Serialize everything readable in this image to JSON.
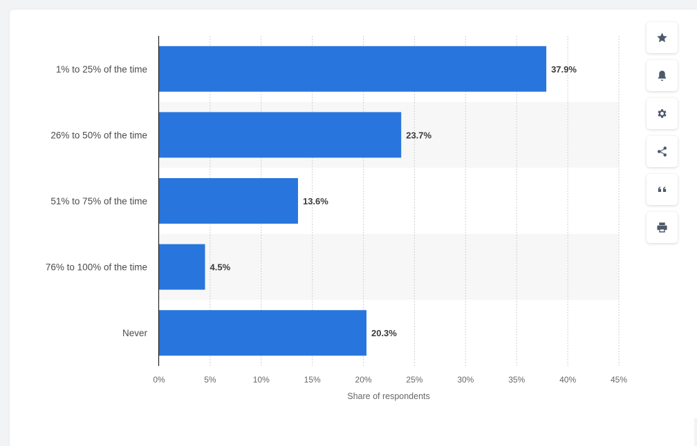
{
  "chart_data": {
    "type": "bar",
    "orientation": "horizontal",
    "categories": [
      "1% to 25% of the time",
      "26% to 50% of the time",
      "51% to 75% of the time",
      "76% to 100% of the time",
      "Never"
    ],
    "values": [
      37.9,
      23.7,
      13.6,
      4.5,
      20.3
    ],
    "value_labels": [
      "37.9%",
      "23.7%",
      "13.6%",
      "4.5%",
      "20.3%"
    ],
    "xlabel": "Share of respondents",
    "ylabel": "",
    "xlim": [
      0,
      45
    ],
    "x_ticks": [
      0,
      5,
      10,
      15,
      20,
      25,
      30,
      35,
      40,
      45
    ],
    "x_tick_labels": [
      "0%",
      "5%",
      "10%",
      "15%",
      "20%",
      "25%",
      "30%",
      "35%",
      "40%",
      "45%"
    ],
    "grid": true,
    "bar_color": "#2876dd",
    "alternate_row_color": "#f7f7f7"
  },
  "toolbar": {
    "buttons": [
      {
        "name": "favorite-button",
        "icon": "star-icon"
      },
      {
        "name": "notification-button",
        "icon": "bell-icon"
      },
      {
        "name": "settings-button",
        "icon": "gear-icon"
      },
      {
        "name": "share-button",
        "icon": "share-icon"
      },
      {
        "name": "cite-button",
        "icon": "quote-icon"
      },
      {
        "name": "print-button",
        "icon": "print-icon"
      }
    ]
  }
}
